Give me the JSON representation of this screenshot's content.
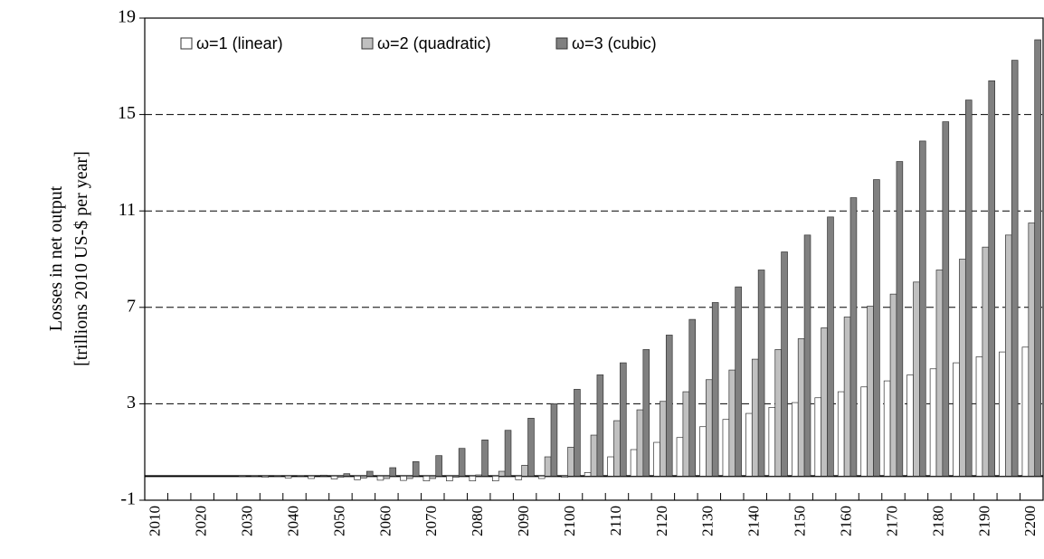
{
  "chart_data": {
    "type": "bar",
    "ylabel": [
      "Losses in net output",
      "[trillions 2010 US-$ per year]"
    ],
    "categories": [
      "2010",
      null,
      "2020",
      null,
      "2030",
      null,
      "2040",
      null,
      "2050",
      null,
      "2060",
      null,
      "2070",
      null,
      "2080",
      null,
      "2090",
      null,
      "2100",
      null,
      "2110",
      null,
      "2120",
      null,
      "2130",
      null,
      "2140",
      null,
      "2150",
      null,
      "2160",
      null,
      "2170",
      null,
      "2180",
      null,
      "2190",
      null,
      "2200"
    ],
    "series": [
      {
        "name": "ω=1 (linear)",
        "color": "#ffffff",
        "values": [
          0,
          0,
          0,
          0,
          -0.02,
          -0.05,
          -0.08,
          -0.1,
          -0.12,
          -0.15,
          -0.17,
          -0.18,
          -0.2,
          -0.2,
          -0.2,
          -0.2,
          -0.15,
          -0.1,
          -0.05,
          0.15,
          0.8,
          1.1,
          1.4,
          1.6,
          2.05,
          2.35,
          2.6,
          2.85,
          3.05,
          3.25,
          3.5,
          3.7,
          3.95,
          4.2,
          4.45,
          4.7,
          4.95,
          5.15,
          5.35
        ]
      },
      {
        "name": "ω=2 (quadratic)",
        "color": "#c0c0c0",
        "values": [
          0,
          0,
          0,
          0,
          0,
          0,
          0,
          0,
          -0.05,
          -0.08,
          -0.1,
          -0.1,
          -0.1,
          -0.05,
          0.05,
          0.2,
          0.45,
          0.8,
          1.2,
          1.7,
          2.3,
          2.75,
          3.1,
          3.5,
          4.0,
          4.4,
          4.85,
          5.25,
          5.7,
          6.15,
          6.6,
          7.05,
          7.55,
          8.05,
          8.55,
          9.0,
          9.5,
          10.0,
          10.5
        ]
      },
      {
        "name": "ω=3 (cubic)",
        "color": "#808080",
        "values": [
          0,
          0,
          0,
          0,
          0.01,
          0.01,
          0.02,
          0.04,
          0.1,
          0.2,
          0.35,
          0.6,
          0.85,
          1.15,
          1.5,
          1.9,
          2.4,
          3.0,
          3.6,
          4.2,
          4.7,
          5.25,
          5.85,
          6.5,
          7.2,
          7.85,
          8.55,
          9.3,
          10.0,
          10.75,
          11.55,
          12.3,
          13.05,
          13.9,
          14.7,
          15.6,
          16.4,
          17.25,
          18.1
        ]
      }
    ],
    "ylim": [
      -1,
      19
    ],
    "yticks": [
      -1,
      3,
      7,
      11,
      15,
      19
    ],
    "grid": true
  }
}
